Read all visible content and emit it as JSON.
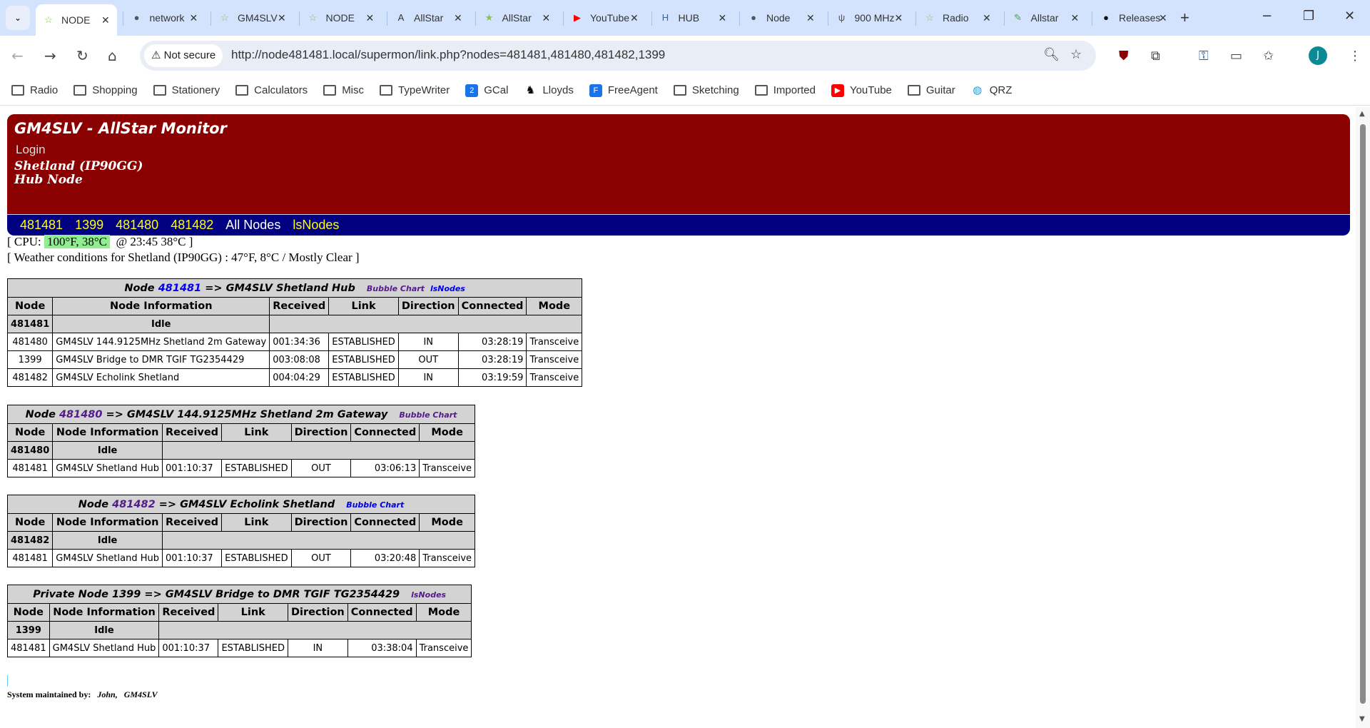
{
  "browser": {
    "tabs": [
      {
        "title": "NODE",
        "icon": "allstar-star"
      },
      {
        "title": "network",
        "icon": "globe"
      },
      {
        "title": "GM4SLV",
        "icon": "allstar-star"
      },
      {
        "title": "NODE",
        "icon": "allstar-star"
      },
      {
        "title": "AllStar",
        "icon": "allstar-logo"
      },
      {
        "title": "AllStar",
        "icon": "allstar-link"
      },
      {
        "title": "YouTube",
        "icon": "youtube"
      },
      {
        "title": "HUB",
        "icon": "hubnet"
      },
      {
        "title": "Node",
        "icon": "globe"
      },
      {
        "title": "900 MHz",
        "icon": "antenna"
      },
      {
        "title": "Radio",
        "icon": "allstar-star"
      },
      {
        "title": "Allstar",
        "icon": "notepad"
      },
      {
        "title": "Releases",
        "icon": "github"
      }
    ],
    "security": "Not secure",
    "url": "http://node481481.local/supermon/link.php?nodes=481481,481480,481482,1399",
    "avatar": "J",
    "bookmarks": [
      {
        "label": "Radio",
        "icon": "folder"
      },
      {
        "label": "Shopping",
        "icon": "folder"
      },
      {
        "label": "Stationery",
        "icon": "folder"
      },
      {
        "label": "Calculators",
        "icon": "folder"
      },
      {
        "label": "Misc",
        "icon": "folder"
      },
      {
        "label": "TypeWriter",
        "icon": "folder"
      },
      {
        "label": "GCal",
        "icon": "gcal"
      },
      {
        "label": "Lloyds",
        "icon": "lloyds"
      },
      {
        "label": "FreeAgent",
        "icon": "freeagent"
      },
      {
        "label": "Sketching",
        "icon": "folder"
      },
      {
        "label": "Imported",
        "icon": "folder"
      },
      {
        "label": "YouTube",
        "icon": "youtube"
      },
      {
        "label": "Guitar",
        "icon": "folder"
      },
      {
        "label": "QRZ",
        "icon": "globe"
      }
    ]
  },
  "header": {
    "title": "GM4SLV - AllStar Monitor",
    "login": "Login",
    "location": "Shetland (IP90GG)",
    "role": "Hub Node",
    "colors": {
      "header": "#8b0000",
      "nav": "#000080"
    }
  },
  "nav": [
    "481481",
    "1399",
    "481480",
    "481482",
    "All Nodes",
    "lsNodes"
  ],
  "cpu": {
    "prefix": "[ CPU: ",
    "temp": "100°F, 38°C",
    "suffix": "@ 23:45   38°C  ]"
  },
  "weather": "[ Weather conditions for Shetland (IP90GG) :  47°F, 8°C / Mostly Clear  ]",
  "columns": [
    "Node",
    "Node Information",
    "Received",
    "Link",
    "Direction",
    "Connected",
    "Mode"
  ],
  "tables": [
    {
      "prefix": "Node ",
      "node": "481481",
      "title": " => GM4SLV Shetland Hub",
      "links": [
        "Bubble Chart",
        "lsNodes"
      ],
      "idle_node": "481481",
      "idle": "Idle",
      "rows": [
        [
          "481480",
          "GM4SLV 144.9125MHz Shetland 2m Gateway",
          "001:34:36",
          "ESTABLISHED",
          "IN",
          "03:28:19",
          "Transceive"
        ],
        [
          "1399",
          "GM4SLV Bridge to DMR TGIF TG2354429",
          "003:08:08",
          "ESTABLISHED",
          "OUT",
          "03:28:19",
          "Transceive"
        ],
        [
          "481482",
          "GM4SLV Echolink Shetland",
          "004:04:29",
          "ESTABLISHED",
          "IN",
          "03:19:59",
          "Transceive"
        ]
      ]
    },
    {
      "prefix": "Node ",
      "node": "481480",
      "title": " => GM4SLV 144.9125MHz Shetland 2m Gateway",
      "links": [
        "Bubble Chart"
      ],
      "idle_node": "481480",
      "idle": "Idle",
      "rows": [
        [
          "481481",
          "GM4SLV Shetland Hub",
          "001:10:37",
          "ESTABLISHED",
          "OUT",
          "03:06:13",
          "Transceive"
        ]
      ]
    },
    {
      "prefix": "Node ",
      "node": "481482",
      "title": " => GM4SLV Echolink Shetland",
      "links": [
        "Bubble Chart"
      ],
      "idle_node": "481482",
      "idle": "Idle",
      "rows": [
        [
          "481481",
          "GM4SLV Shetland Hub",
          "001:10:37",
          "ESTABLISHED",
          "OUT",
          "03:20:48",
          "Transceive"
        ]
      ]
    },
    {
      "prefix": "Private Node 1399",
      "node": "",
      "title": " => GM4SLV Bridge to DMR TGIF TG2354429",
      "links": [
        "lsNodes"
      ],
      "idle_node": "1399",
      "idle": "Idle",
      "rows": [
        [
          "481481",
          "GM4SLV Shetland Hub",
          "001:10:37",
          "ESTABLISHED",
          "IN",
          "03:38:04",
          "Transceive"
        ]
      ]
    }
  ],
  "footer": {
    "label": "System maintained by:",
    "name": "John,",
    "call": "GM4SLV"
  }
}
